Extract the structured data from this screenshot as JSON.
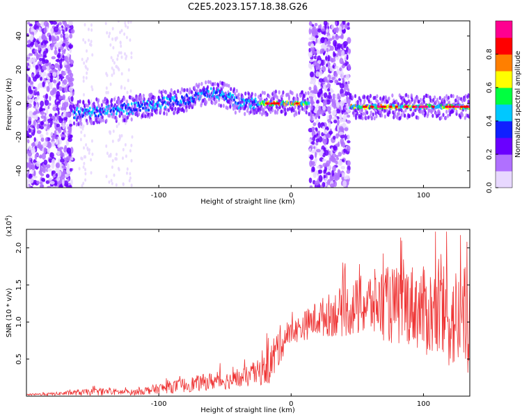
{
  "figure": {
    "title": "C2E5.2023.157.18.38.G26"
  },
  "chart_data": [
    {
      "type": "heatmap",
      "xlabel": "Height of straight line (km)",
      "ylabel": "Frequency (Hz)",
      "xlim": [
        -200,
        135
      ],
      "ylim": [
        -50,
        49
      ],
      "xticks": [
        -100,
        0,
        100
      ],
      "yticks": [
        -40,
        -20,
        0,
        20,
        40
      ],
      "colorbar": {
        "label": "Normalized spectral amplitude",
        "range": [
          0,
          1
        ],
        "ticks": [
          0.0,
          0.2,
          0.4,
          0.6,
          0.8
        ],
        "tick_labels": [
          "0.0",
          "0.2",
          "0.4",
          "0.6",
          "0.8"
        ],
        "colormap": [
          "#e8d8ff",
          "#b070ff",
          "#6a00ff",
          "#1020ff",
          "#00c8ff",
          "#00ff40",
          "#ffff00",
          "#ff7f00",
          "#ff0000",
          "#ff0090"
        ]
      },
      "ridge": [
        {
          "x": -165,
          "y": -6
        },
        {
          "x": -140,
          "y": -4
        },
        {
          "x": -120,
          "y": -3
        },
        {
          "x": -100,
          "y": 0
        },
        {
          "x": -80,
          "y": 2
        },
        {
          "x": -60,
          "y": 7
        },
        {
          "x": -50,
          "y": 5
        },
        {
          "x": -40,
          "y": 0
        },
        {
          "x": -20,
          "y": 0
        },
        {
          "x": 0,
          "y": 0
        },
        {
          "x": 12,
          "y": 0
        },
        {
          "x": 50,
          "y": -2
        },
        {
          "x": 100,
          "y": -2
        },
        {
          "x": 135,
          "y": -2
        }
      ],
      "noise_bands": [
        [
          -200,
          -165
        ],
        [
          14,
          44
        ]
      ],
      "sparse_bands": [
        [
          -160,
          -150
        ],
        [
          -140,
          -120
        ]
      ]
    },
    {
      "type": "line",
      "xlabel": "Height of straight line (km)",
      "ylabel": "SNR (10 * v/v)",
      "yscale_label": "(x10",
      "yscale_exp": "4",
      "yscale_close": ")",
      "xlim": [
        -200,
        135
      ],
      "ylim": [
        0,
        2.25
      ],
      "xticks": [
        -100,
        0,
        100
      ],
      "yticks": [
        0.5,
        1.0,
        1.5,
        2.0
      ],
      "ytick_labels": [
        "0.5",
        "1.0",
        "1.5",
        "2.0"
      ],
      "series": [
        {
          "color": "#ee3333",
          "envelope_x": [
            -200,
            -180,
            -160,
            -140,
            -120,
            -100,
            -80,
            -60,
            -40,
            -30,
            -20,
            -15,
            -10,
            -5,
            0,
            10,
            20,
            30,
            40,
            50,
            60,
            70,
            80,
            90,
            100,
            110,
            120,
            130,
            135
          ],
          "mean": [
            0.02,
            0.03,
            0.05,
            0.06,
            0.05,
            0.1,
            0.15,
            0.2,
            0.22,
            0.28,
            0.35,
            0.45,
            0.65,
            0.78,
            0.85,
            0.95,
            1.05,
            1.1,
            1.15,
            1.2,
            1.25,
            1.25,
            1.2,
            1.25,
            1.15,
            1.1,
            1.05,
            1.0,
            1.0
          ],
          "spread": [
            0.01,
            0.02,
            0.04,
            0.05,
            0.04,
            0.07,
            0.1,
            0.12,
            0.12,
            0.15,
            0.2,
            0.3,
            0.3,
            0.2,
            0.15,
            0.2,
            0.25,
            0.3,
            0.35,
            0.4,
            0.45,
            0.5,
            0.55,
            0.55,
            0.6,
            0.65,
            0.7,
            0.75,
            0.8
          ],
          "peak_max": 2.22
        }
      ]
    }
  ]
}
